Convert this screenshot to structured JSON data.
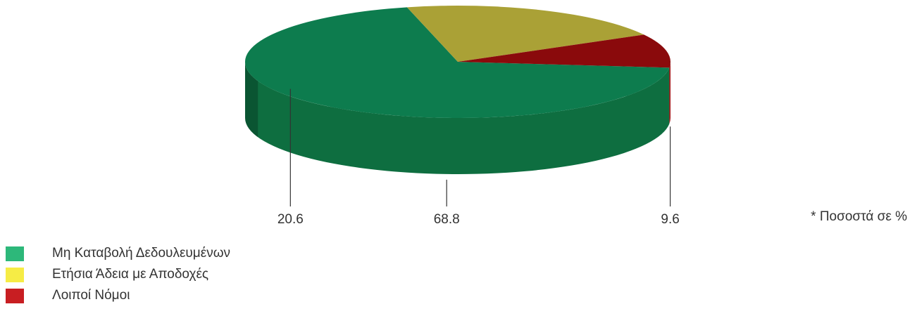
{
  "chart_data": {
    "type": "pie",
    "style": "3d",
    "slices": [
      {
        "label": "Μη Καταβολή Δεδουλευμένων",
        "value": 68.8,
        "value_label": "68.8",
        "top_color": "#0d7c4e",
        "side_color": "#0e6e40",
        "legend_color": "#2db87a"
      },
      {
        "label": "Ετήσια Άδεια με Αποδοχές",
        "value": 20.6,
        "value_label": "20.6",
        "top_color": "#aaa136",
        "side_color": "#e3d63f",
        "legend_color": "#f6ec45"
      },
      {
        "label": "Λοιποί Νόμοι",
        "value": 9.6,
        "value_label": "9.6",
        "top_color": "#8a0a0c",
        "side_color": "#9e0d10",
        "legend_color": "#c81e22"
      }
    ],
    "note": "* Ποσοστά σε %",
    "legend_position": "bottom-left"
  }
}
